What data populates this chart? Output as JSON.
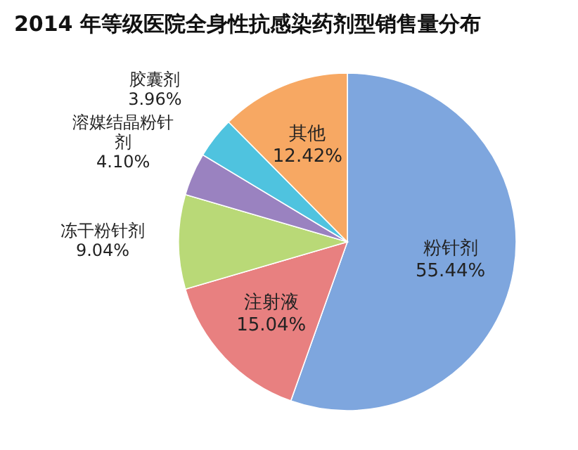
{
  "chart_data": {
    "type": "pie",
    "title": "2014 年等级医院全身性抗感染药剂型销售量分布",
    "categories": [
      "粉针剂",
      "注射液",
      "冻干粉针剂",
      "溶媒结晶粉针剂",
      "胶囊剂",
      "其他"
    ],
    "values": [
      55.44,
      15.04,
      9.04,
      4.1,
      3.96,
      12.42
    ],
    "colors": [
      "#7ea6de",
      "#e88080",
      "#b9d977",
      "#9a82c0",
      "#4fc3df",
      "#f7a863"
    ],
    "value_labels": [
      "55.44%",
      "15.04%",
      "9.04%",
      "4.10%",
      "3.96%",
      "12.42%"
    ]
  }
}
